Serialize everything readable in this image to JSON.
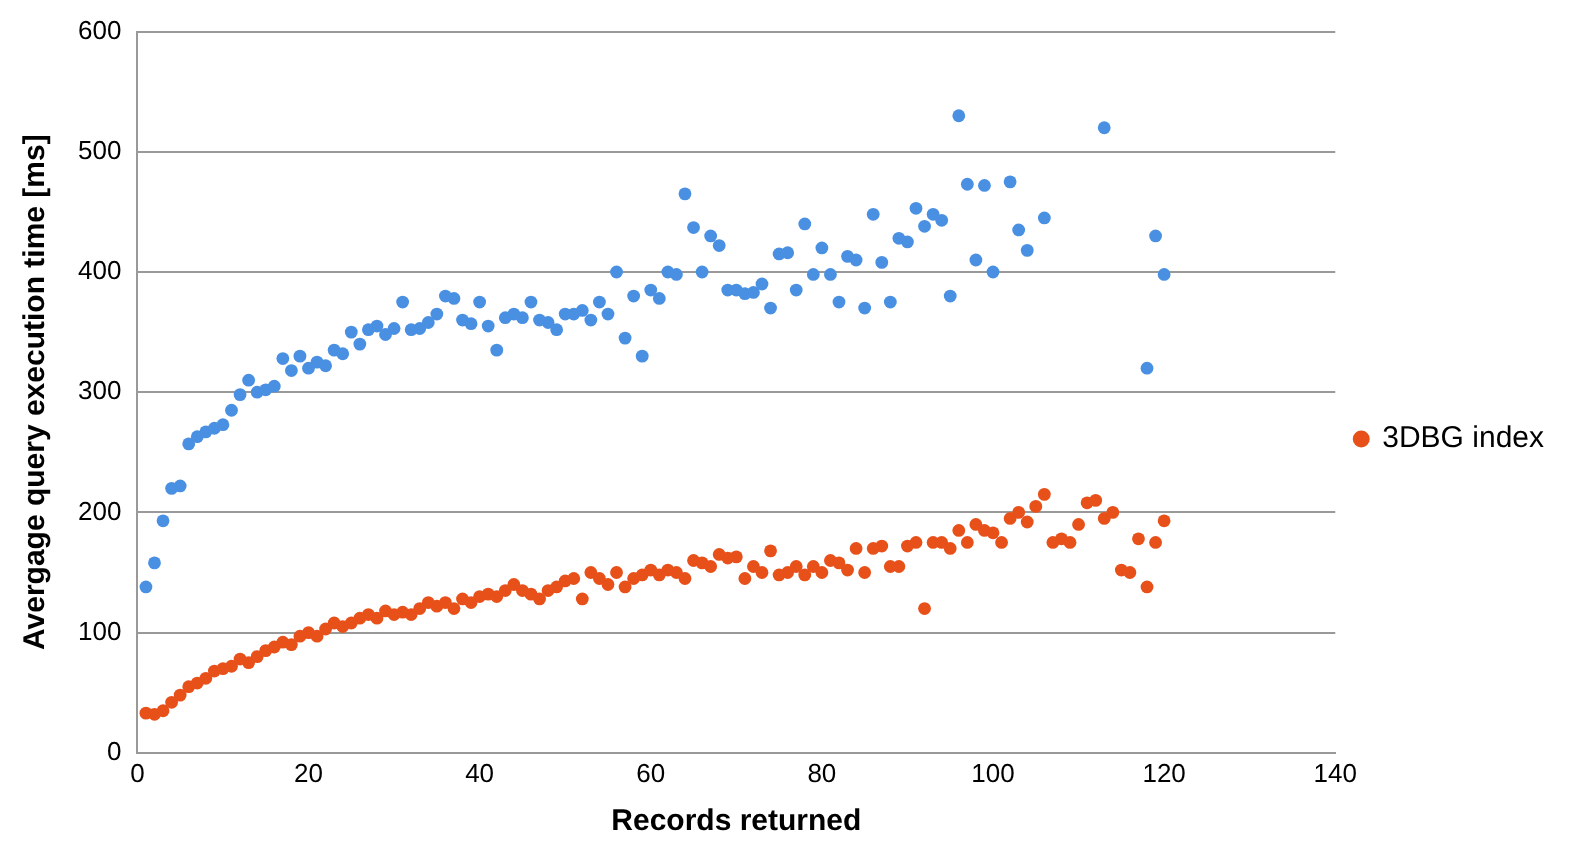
{
  "chart_data": {
    "type": "scatter",
    "xlabel": "Records returned",
    "ylabel": "Avergage query execution time [ms]",
    "x": [
      1,
      2,
      3,
      4,
      5,
      6,
      7,
      8,
      9,
      10,
      11,
      12,
      13,
      14,
      15,
      16,
      17,
      18,
      19,
      20,
      21,
      22,
      23,
      24,
      25,
      26,
      27,
      28,
      29,
      30,
      31,
      32,
      33,
      34,
      35,
      36,
      37,
      38,
      39,
      40,
      41,
      42,
      43,
      44,
      45,
      46,
      47,
      48,
      49,
      50,
      51,
      52,
      53,
      54,
      55,
      56,
      57,
      58,
      59,
      60,
      61,
      62,
      63,
      64,
      65,
      66,
      67,
      68,
      69,
      70,
      71,
      72,
      73,
      74,
      75,
      76,
      77,
      78,
      79,
      80,
      81,
      82,
      83,
      84,
      85,
      86,
      87,
      88,
      89,
      90,
      91,
      92,
      93,
      94,
      95,
      96,
      97,
      98,
      99,
      100,
      101,
      102,
      103,
      104,
      105,
      106,
      107,
      108,
      109,
      110,
      111,
      112,
      113,
      114,
      115,
      116,
      117,
      118,
      119,
      120
    ],
    "series": [
      {
        "color": "#4a90e2",
        "values": [
          138,
          158,
          193,
          220,
          222,
          257,
          263,
          267,
          270,
          273,
          285,
          298,
          310,
          300,
          302,
          305,
          328,
          318,
          330,
          320,
          325,
          322,
          335,
          332,
          350,
          340,
          352,
          355,
          348,
          353,
          375,
          352,
          353,
          358,
          365,
          380,
          378,
          360,
          357,
          375,
          355,
          335,
          362,
          365,
          362,
          375,
          360,
          358,
          352,
          365,
          365,
          368,
          360,
          375,
          365,
          400,
          345,
          380,
          330,
          385,
          378,
          400,
          398,
          465,
          437,
          400,
          430,
          422,
          385,
          385,
          382,
          383,
          390,
          370,
          415,
          416,
          385,
          440,
          398,
          420,
          398,
          375,
          413,
          410,
          370,
          448,
          408,
          375,
          428,
          425,
          453,
          438,
          448,
          443,
          380,
          530,
          473,
          410,
          472,
          400,
          null,
          475,
          435,
          418,
          null,
          445,
          null,
          null,
          null,
          null,
          null,
          null,
          520,
          null,
          null,
          null,
          null,
          320,
          430,
          398
        ]
      },
      {
        "name": "3DBG index",
        "color": "#e8501a",
        "values": [
          33,
          32,
          35,
          42,
          48,
          55,
          58,
          62,
          68,
          70,
          72,
          78,
          75,
          80,
          85,
          88,
          92,
          90,
          97,
          100,
          97,
          103,
          108,
          105,
          108,
          112,
          115,
          112,
          118,
          115,
          117,
          115,
          120,
          125,
          122,
          125,
          120,
          128,
          125,
          130,
          132,
          130,
          135,
          140,
          135,
          132,
          128,
          135,
          138,
          143,
          145,
          128,
          150,
          145,
          140,
          150,
          138,
          145,
          148,
          152,
          148,
          152,
          150,
          145,
          160,
          158,
          155,
          165,
          162,
          163,
          145,
          155,
          150,
          168,
          148,
          150,
          155,
          148,
          155,
          150,
          160,
          158,
          152,
          170,
          150,
          170,
          172,
          155,
          155,
          172,
          175,
          120,
          175,
          175,
          170,
          185,
          175,
          190,
          185,
          183,
          175,
          195,
          200,
          192,
          205,
          215,
          175,
          178,
          175,
          190,
          208,
          210,
          195,
          200,
          152,
          150,
          178,
          138,
          175,
          193
        ]
      }
    ],
    "xlim": [
      0,
      140
    ],
    "xticks": [
      0,
      20,
      40,
      60,
      80,
      100,
      120,
      140
    ],
    "ylim": [
      0,
      600
    ],
    "yticks": [
      0,
      100,
      200,
      300,
      400,
      500,
      600
    ],
    "grid": "y",
    "legend": "right",
    "marker": "circle"
  }
}
